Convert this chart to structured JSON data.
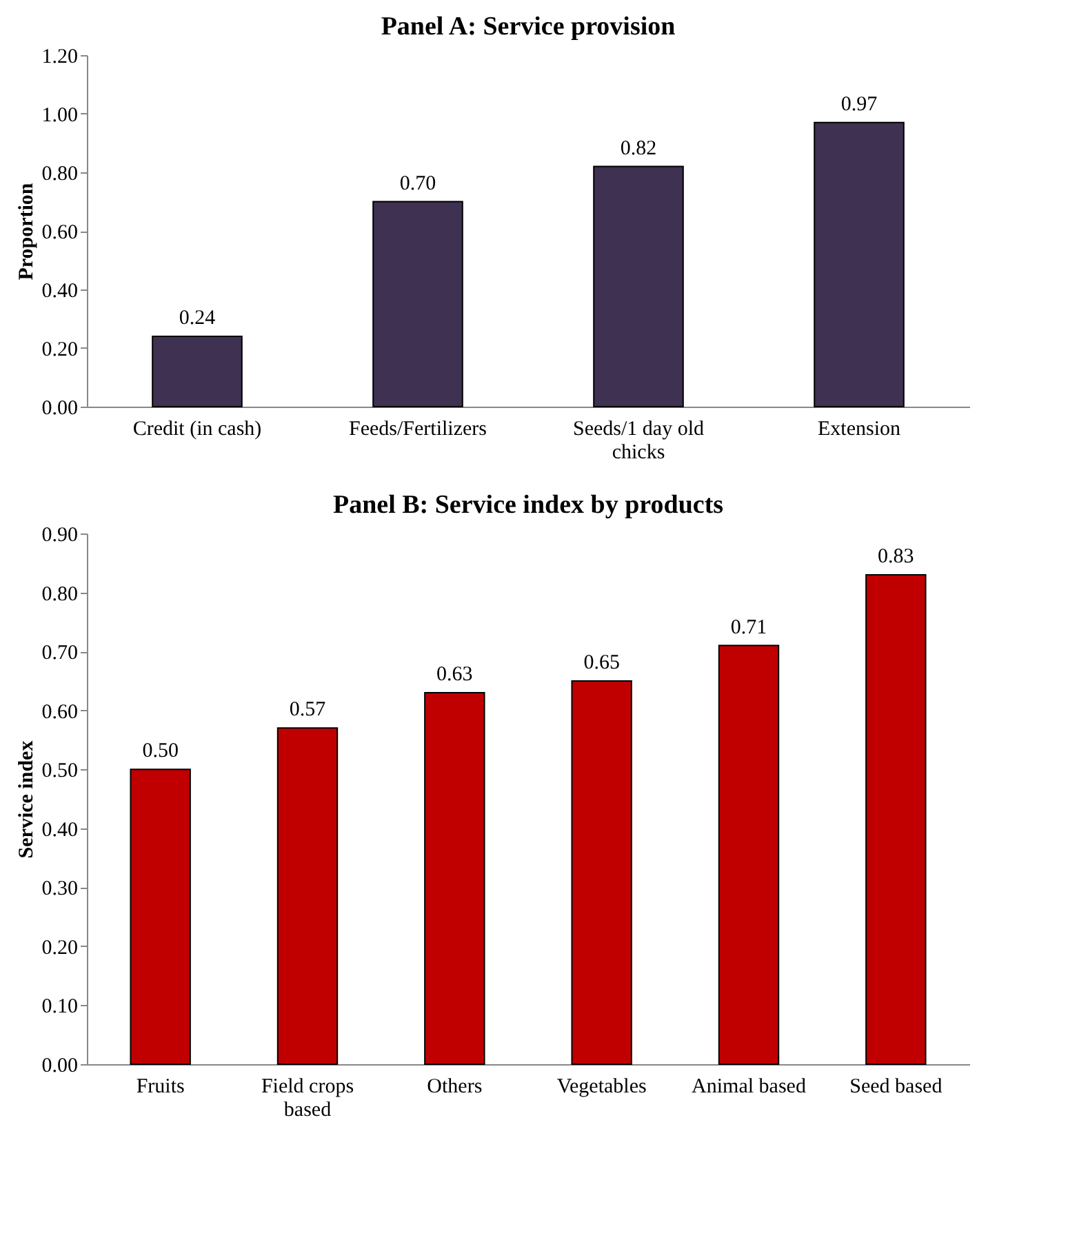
{
  "chart_data": [
    {
      "type": "bar",
      "title": "Panel A: Service provision",
      "ylabel": "Proportion",
      "categories": [
        "Credit (in cash)",
        "Feeds/Fertilizers",
        "Seeds/1 day old chicks",
        "Extension"
      ],
      "series": [
        {
          "color": "#3f3151",
          "values": [
            0.24,
            0.7,
            0.82,
            0.97
          ],
          "value_labels": [
            "0.24",
            "0.70",
            "0.82",
            "0.97"
          ]
        }
      ],
      "ylim": [
        0,
        1.2
      ],
      "yticks": [
        {
          "value": 0,
          "label": "0.00"
        },
        {
          "value": 0.2,
          "label": "0.20"
        },
        {
          "value": 0.4,
          "label": "0.40"
        },
        {
          "value": 0.6,
          "label": "0.60"
        },
        {
          "value": 0.8,
          "label": "0.80"
        },
        {
          "value": 1.0,
          "label": "1.00"
        },
        {
          "value": 1.2,
          "label": "1.20"
        }
      ],
      "grid": false,
      "legend": false
    },
    {
      "type": "bar",
      "title": "Panel B: Service index by products",
      "ylabel": "Service index",
      "categories": [
        "Fruits",
        "Field crops based",
        "Others",
        "Vegetables",
        "Animal based",
        "Seed based"
      ],
      "series": [
        {
          "color": "#c00000",
          "values": [
            0.5,
            0.57,
            0.63,
            0.65,
            0.71,
            0.83
          ],
          "value_labels": [
            "0.50",
            "0.57",
            "0.63",
            "0.65",
            "0.71",
            "0.83"
          ]
        }
      ],
      "ylim": [
        0,
        0.9
      ],
      "yticks": [
        {
          "value": 0,
          "label": "0.00"
        },
        {
          "value": 0.1,
          "label": "0.10"
        },
        {
          "value": 0.2,
          "label": "0.20"
        },
        {
          "value": 0.3,
          "label": "0.30"
        },
        {
          "value": 0.4,
          "label": "0.40"
        },
        {
          "value": 0.5,
          "label": "0.50"
        },
        {
          "value": 0.6,
          "label": "0.60"
        },
        {
          "value": 0.7,
          "label": "0.70"
        },
        {
          "value": 0.8,
          "label": "0.80"
        },
        {
          "value": 0.9,
          "label": "0.90"
        }
      ],
      "grid": false,
      "legend": false
    }
  ]
}
